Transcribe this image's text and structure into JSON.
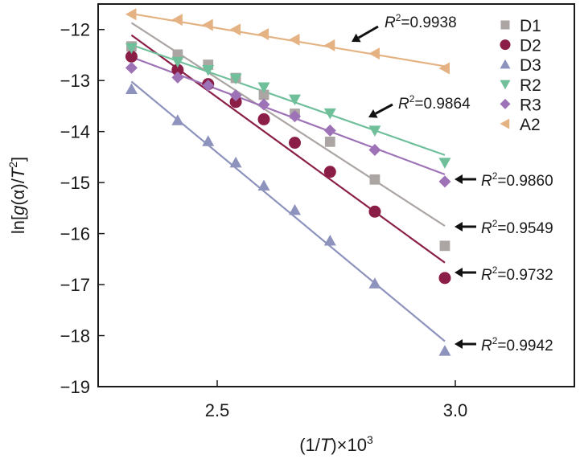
{
  "chart_data": {
    "type": "scatter",
    "title": "",
    "xlabel": {
      "prefix": "(1/",
      "italic": "T",
      "suffix": ")×10",
      "sup": "3"
    },
    "ylabel": {
      "prefix": "ln[",
      "italic1": "g",
      "mid": "(α)/",
      "italic2": "T",
      "sup": "2",
      "suffix": "]"
    },
    "xlim": [
      2.25,
      3.25
    ],
    "ylim": [
      -19,
      -11.5
    ],
    "xticks": [
      2.5,
      3.0
    ],
    "xtick_labels": [
      "2.5",
      "3.0"
    ],
    "yticks": [
      -12,
      -13,
      -14,
      -15,
      -16,
      -17,
      -18,
      -19
    ],
    "ytick_labels": [
      "−12",
      "−13",
      "−14",
      "−15",
      "−16",
      "−17",
      "−18",
      "−19"
    ],
    "grid": false,
    "legend_position": "top-right",
    "x": [
      2.32,
      2.417,
      2.481,
      2.539,
      2.598,
      2.663,
      2.737,
      2.831,
      2.978
    ],
    "series": [
      {
        "name": "D1",
        "marker": "square",
        "color": "#aba5a3",
        "values": [
          -12.33,
          -12.49,
          -12.69,
          -12.95,
          -13.28,
          -13.65,
          -14.2,
          -14.94,
          -16.24
        ],
        "fit": {
          "x": [
            2.32,
            2.978
          ],
          "y": [
            -11.87,
            -15.85
          ]
        },
        "r2": "0.9549"
      },
      {
        "name": "D2",
        "marker": "circle",
        "color": "#8b1e46",
        "values": [
          -12.53,
          -12.79,
          -13.07,
          -13.42,
          -13.76,
          -14.22,
          -14.79,
          -15.57,
          -16.87
        ],
        "fit": {
          "x": [
            2.32,
            2.978
          ],
          "y": [
            -12.11,
            -16.57
          ]
        },
        "r2": "0.9732"
      },
      {
        "name": "D3",
        "marker": "triangle-up",
        "color": "#8e93bd",
        "values": [
          -13.17,
          -13.78,
          -14.19,
          -14.61,
          -15.06,
          -15.54,
          -16.14,
          -16.98,
          -18.3
        ],
        "fit": {
          "x": [
            2.32,
            2.978
          ],
          "y": [
            -13.02,
            -18.11
          ]
        },
        "r2": "0.9942"
      },
      {
        "name": "R2",
        "marker": "triangle-down",
        "color": "#6fbf9a",
        "values": [
          -12.36,
          -12.63,
          -12.79,
          -12.96,
          -13.13,
          -13.37,
          -13.64,
          -13.98,
          -14.61
        ],
        "fit": {
          "x": [
            2.32,
            2.978
          ],
          "y": [
            -12.3,
            -14.46
          ]
        },
        "r2": "0.9864"
      },
      {
        "name": "R3",
        "marker": "diamond",
        "color": "#9d72b6",
        "values": [
          -12.75,
          -12.94,
          -13.1,
          -13.29,
          -13.47,
          -13.7,
          -13.98,
          -14.36,
          -14.98
        ],
        "fit": {
          "x": [
            2.32,
            2.978
          ],
          "y": [
            -12.54,
            -14.84
          ]
        },
        "r2": "0.9860"
      },
      {
        "name": "A2",
        "marker": "triangle-left",
        "color": "#e5b383",
        "values": [
          -11.7,
          -11.81,
          -11.91,
          -12.0,
          -12.09,
          -12.2,
          -12.31,
          -12.47,
          -12.76
        ],
        "fit": {
          "x": [
            2.32,
            2.978
          ],
          "y": [
            -11.69,
            -12.72
          ]
        },
        "r2": "0.9938"
      }
    ],
    "annotations": [
      {
        "series": "A2",
        "text_italic": "R",
        "sup": "2",
        "text": "=0.9938"
      },
      {
        "series": "R2",
        "text_italic": "R",
        "sup": "2",
        "text": "=0.9864"
      },
      {
        "series": "R3",
        "text_italic": "R",
        "sup": "2",
        "text": "=0.9860"
      },
      {
        "series": "D1",
        "text_italic": "R",
        "sup": "2",
        "text": "=0.9549"
      },
      {
        "series": "D2",
        "text_italic": "R",
        "sup": "2",
        "text": "=0.9732"
      },
      {
        "series": "D3",
        "text_italic": "R",
        "sup": "2",
        "text": "=0.9942"
      }
    ]
  }
}
